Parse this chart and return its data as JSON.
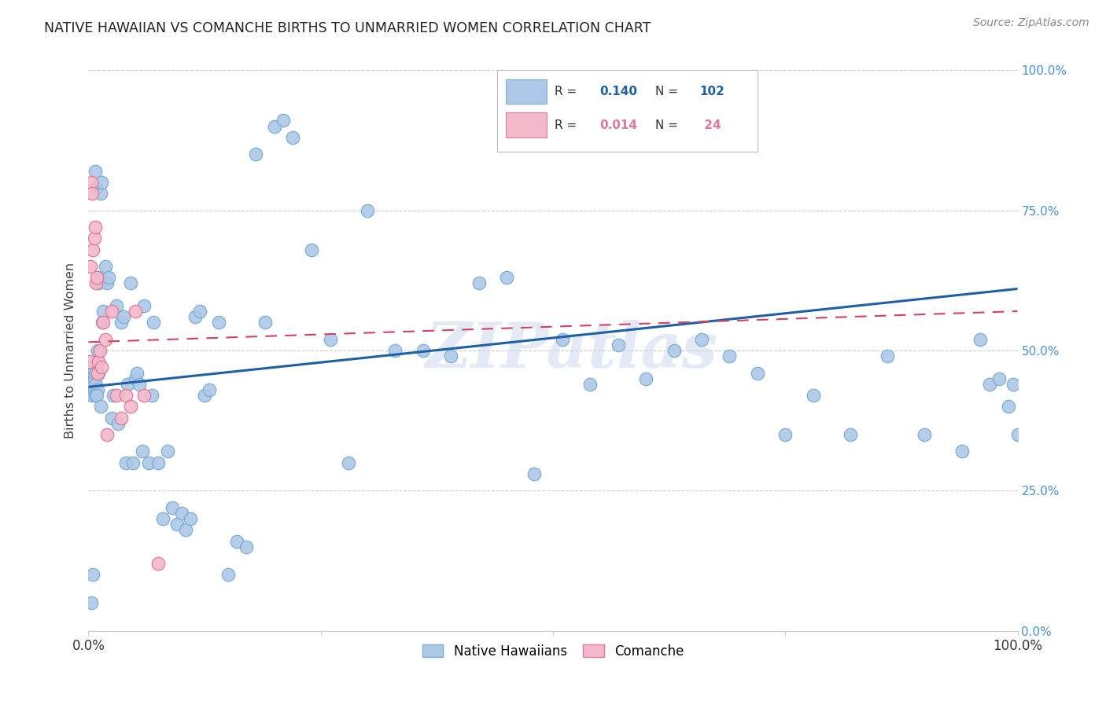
{
  "title": "NATIVE HAWAIIAN VS COMANCHE BIRTHS TO UNMARRIED WOMEN CORRELATION CHART",
  "source": "Source: ZipAtlas.com",
  "ylabel": "Births to Unmarried Women",
  "watermark": "ZIPatlas",
  "blue_color": "#adc8e6",
  "blue_edge": "#7aadd4",
  "pink_color": "#f4b8cb",
  "pink_edge": "#e07898",
  "blue_line_color": "#1f5fa6",
  "pink_line_color": "#d44060",
  "background_color": "#ffffff",
  "native_hawaiians_label": "Native Hawaiians",
  "comanche_label": "Comanche",
  "right_tick_color": "#4a8fd4",
  "blue_intercept": 0.435,
  "blue_slope": 0.175,
  "pink_intercept": 0.515,
  "pink_slope": 0.055,
  "blue_x": [
    0.001,
    0.002,
    0.002,
    0.003,
    0.003,
    0.004,
    0.004,
    0.005,
    0.005,
    0.006,
    0.006,
    0.007,
    0.007,
    0.008,
    0.008,
    0.009,
    0.01,
    0.01,
    0.011,
    0.012,
    0.013,
    0.014,
    0.015,
    0.016,
    0.018,
    0.02,
    0.022,
    0.025,
    0.027,
    0.03,
    0.032,
    0.035,
    0.038,
    0.04,
    0.042,
    0.045,
    0.048,
    0.05,
    0.052,
    0.055,
    0.058,
    0.06,
    0.065,
    0.068,
    0.07,
    0.075,
    0.08,
    0.085,
    0.09,
    0.095,
    0.1,
    0.105,
    0.11,
    0.115,
    0.12,
    0.125,
    0.13,
    0.14,
    0.15,
    0.16,
    0.17,
    0.18,
    0.19,
    0.2,
    0.21,
    0.22,
    0.24,
    0.26,
    0.28,
    0.3,
    0.33,
    0.36,
    0.39,
    0.42,
    0.45,
    0.48,
    0.51,
    0.54,
    0.57,
    0.6,
    0.63,
    0.66,
    0.69,
    0.72,
    0.75,
    0.78,
    0.82,
    0.86,
    0.9,
    0.94,
    0.96,
    0.97,
    0.98,
    0.99,
    0.995,
    1.0,
    0.003,
    0.005,
    0.007,
    0.009,
    0.011,
    0.013
  ],
  "blue_y": [
    0.45,
    0.44,
    0.47,
    0.43,
    0.46,
    0.45,
    0.42,
    0.44,
    0.47,
    0.45,
    0.43,
    0.46,
    0.82,
    0.79,
    0.44,
    0.48,
    0.5,
    0.43,
    0.62,
    0.63,
    0.78,
    0.8,
    0.55,
    0.57,
    0.65,
    0.62,
    0.63,
    0.38,
    0.42,
    0.58,
    0.37,
    0.55,
    0.56,
    0.3,
    0.44,
    0.62,
    0.3,
    0.45,
    0.46,
    0.44,
    0.32,
    0.58,
    0.3,
    0.42,
    0.55,
    0.3,
    0.2,
    0.32,
    0.22,
    0.19,
    0.21,
    0.18,
    0.2,
    0.56,
    0.57,
    0.42,
    0.43,
    0.55,
    0.1,
    0.16,
    0.15,
    0.85,
    0.55,
    0.9,
    0.91,
    0.88,
    0.68,
    0.52,
    0.3,
    0.75,
    0.5,
    0.5,
    0.49,
    0.62,
    0.63,
    0.28,
    0.52,
    0.44,
    0.51,
    0.45,
    0.5,
    0.52,
    0.49,
    0.46,
    0.35,
    0.42,
    0.35,
    0.49,
    0.35,
    0.32,
    0.52,
    0.44,
    0.45,
    0.4,
    0.44,
    0.35,
    0.05,
    0.1,
    0.42,
    0.42,
    0.46,
    0.4
  ],
  "pink_x": [
    0.001,
    0.002,
    0.003,
    0.004,
    0.005,
    0.006,
    0.007,
    0.008,
    0.009,
    0.01,
    0.011,
    0.012,
    0.014,
    0.016,
    0.018,
    0.02,
    0.025,
    0.03,
    0.035,
    0.04,
    0.045,
    0.05,
    0.06,
    0.075
  ],
  "pink_y": [
    0.48,
    0.65,
    0.8,
    0.78,
    0.68,
    0.7,
    0.72,
    0.62,
    0.63,
    0.46,
    0.48,
    0.5,
    0.47,
    0.55,
    0.52,
    0.35,
    0.57,
    0.42,
    0.38,
    0.42,
    0.4,
    0.57,
    0.42,
    0.12
  ]
}
